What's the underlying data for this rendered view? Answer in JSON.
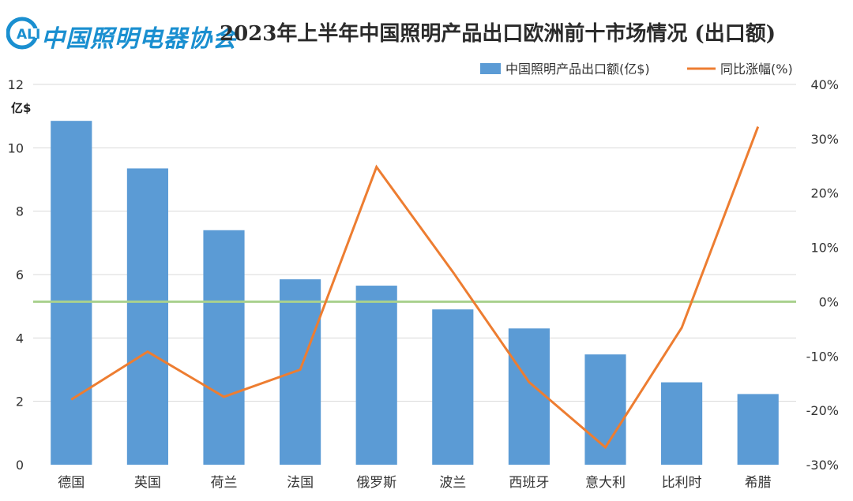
{
  "header": {
    "logo_text": "中国照明电器协会",
    "title": "2023年上半年中国照明产品出口欧洲前十市场情况 (出口额)"
  },
  "colors": {
    "bar": "#5b9bd5",
    "line": "#ed7d31",
    "zero_line": "#a9d18e",
    "logo": "#1a8fd0"
  },
  "chart_data": {
    "type": "bar",
    "title": "2023年上半年中国照明产品出口欧洲前十市场情况 (出口额)",
    "categories": [
      "德国",
      "英国",
      "荷兰",
      "法国",
      "俄罗斯",
      "波兰",
      "西班牙",
      "意大利",
      "比利时",
      "希腊"
    ],
    "y_unit": "亿$",
    "ylim": [
      0,
      12
    ],
    "y_ticks": [
      0,
      2,
      4,
      6,
      8,
      10,
      12
    ],
    "y2lim": [
      -30,
      40
    ],
    "y2_ticks": [
      -30,
      -20,
      -10,
      0,
      10,
      20,
      30,
      40
    ],
    "y2_tick_labels": [
      "-30%",
      "-20%",
      "-10%",
      "0%",
      "10%",
      "20%",
      "30%",
      "40%"
    ],
    "series": [
      {
        "name": "中国照明产品出口额(亿$)",
        "type": "bar",
        "axis": "left",
        "values": [
          10.85,
          9.35,
          7.4,
          5.85,
          5.65,
          4.9,
          4.3,
          3.48,
          2.6,
          2.23
        ]
      },
      {
        "name": "同比涨幅(%)",
        "type": "line",
        "axis": "right",
        "values": [
          -18,
          -9.2,
          -17.5,
          -12.5,
          24.8,
          5.5,
          -14.8,
          -26.8,
          -4.8,
          32.2
        ]
      }
    ],
    "legend_position": "top-right",
    "grid": true
  }
}
